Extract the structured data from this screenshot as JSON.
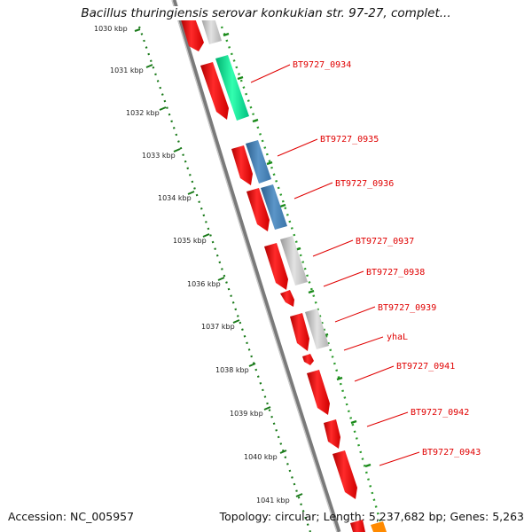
{
  "title": "Bacillus thuringiensis serovar konkukian str. 97-27, complet...",
  "footer": {
    "accession": "Accession: NC_005957",
    "summary": "Topology: circular; Length: 5,237,682 bp; Genes: 5,263"
  },
  "scale": {
    "ticks": [
      "1030 kbp",
      "1031 kbp",
      "1032 kbp",
      "1033 kbp",
      "1034 kbp",
      "1035 kbp",
      "1036 kbp",
      "1037 kbp",
      "1038 kbp",
      "1039 kbp",
      "1040 kbp",
      "1041 kbp"
    ]
  },
  "genes": [
    {
      "label": "BT9727_0934",
      "color": "#00e08a"
    },
    {
      "label": "BT9727_0935",
      "color": "#3a78b0"
    },
    {
      "label": "BT9727_0936",
      "color": "#3a78b0"
    },
    {
      "label": "BT9727_0937",
      "color": "#b8b8b8"
    },
    {
      "label": "BT9727_0938",
      "color": "#b8b8b8"
    },
    {
      "label": "BT9727_0939",
      "color": "#b8b8b8"
    },
    {
      "label": "yhaL",
      "color": "#ff0000"
    },
    {
      "label": "BT9727_0941",
      "color": "#ff0000"
    },
    {
      "label": "BT9727_0942",
      "color": "#ff0000"
    },
    {
      "label": "BT9727_0943",
      "color": "#ff0000"
    }
  ],
  "colors": {
    "cds": "#ff0000",
    "backbone": "#808080",
    "gc_skew_dots": "#1a8a1a",
    "label_text": "#e00000"
  }
}
